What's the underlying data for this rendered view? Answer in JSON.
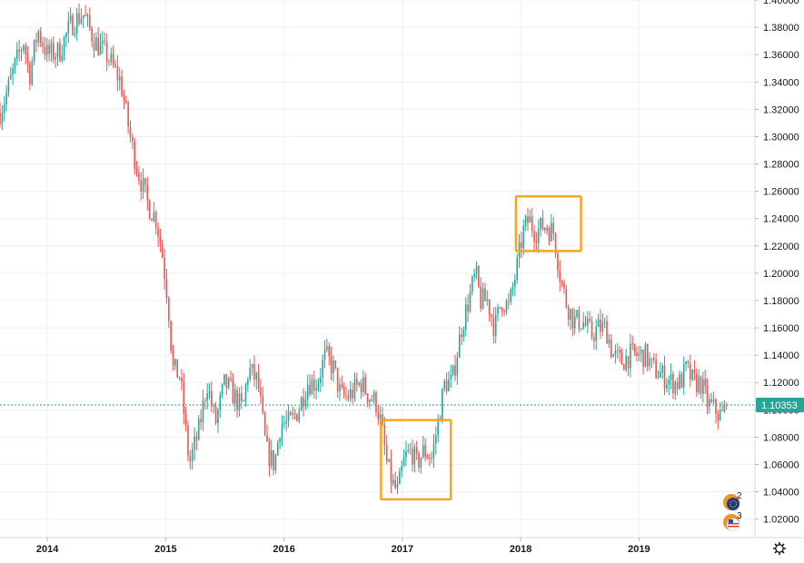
{
  "chart_data": {
    "type": "candlestick",
    "x_tick_labels": [
      "2014",
      "2015",
      "2016",
      "2017",
      "2018",
      "2019"
    ],
    "x_tick_values": [
      2014.0,
      2015.0,
      2016.0,
      2017.0,
      2018.0,
      2019.0
    ],
    "xlim": [
      2013.6,
      2019.98
    ],
    "ylim": [
      1.0065,
      1.4
    ],
    "y_tick_values": [
      1.02,
      1.04,
      1.06,
      1.08,
      1.1,
      1.12,
      1.14,
      1.16,
      1.18,
      1.2,
      1.22,
      1.24,
      1.26,
      1.28,
      1.3,
      1.32,
      1.34,
      1.36,
      1.38,
      1.4
    ],
    "y_tick_labels": [
      "1.02000",
      "1.04000",
      "1.06000",
      "1.08000",
      "1.10000",
      "1.12000",
      "1.14000",
      "1.16000",
      "1.18000",
      "1.20000",
      "1.22000",
      "1.24000",
      "1.26000",
      "1.28000",
      "1.30000",
      "1.32000",
      "1.34000",
      "1.36000",
      "1.38000",
      "1.40000"
    ],
    "price_path": [
      [
        2013.6,
        1.318
      ],
      [
        2013.65,
        1.33
      ],
      [
        2013.72,
        1.35
      ],
      [
        2013.8,
        1.37
      ],
      [
        2013.85,
        1.345
      ],
      [
        2013.92,
        1.378
      ],
      [
        2014.0,
        1.36
      ],
      [
        2014.1,
        1.362
      ],
      [
        2014.2,
        1.382
      ],
      [
        2014.3,
        1.39
      ],
      [
        2014.4,
        1.37
      ],
      [
        2014.5,
        1.36
      ],
      [
        2014.55,
        1.352
      ],
      [
        2014.62,
        1.34
      ],
      [
        2014.7,
        1.3
      ],
      [
        2014.75,
        1.28
      ],
      [
        2014.85,
        1.25
      ],
      [
        2014.92,
        1.24
      ],
      [
        2014.97,
        1.215
      ],
      [
        2015.02,
        1.18
      ],
      [
        2015.06,
        1.13
      ],
      [
        2015.12,
        1.125
      ],
      [
        2015.2,
        1.06
      ],
      [
        2015.28,
        1.085
      ],
      [
        2015.35,
        1.12
      ],
      [
        2015.42,
        1.09
      ],
      [
        2015.5,
        1.12
      ],
      [
        2015.58,
        1.11
      ],
      [
        2015.65,
        1.1
      ],
      [
        2015.7,
        1.13
      ],
      [
        2015.78,
        1.12
      ],
      [
        2015.85,
        1.07
      ],
      [
        2015.92,
        1.06
      ],
      [
        2015.97,
        1.09
      ],
      [
        2016.05,
        1.09
      ],
      [
        2016.12,
        1.1
      ],
      [
        2016.2,
        1.12
      ],
      [
        2016.28,
        1.12
      ],
      [
        2016.35,
        1.14
      ],
      [
        2016.42,
        1.13
      ],
      [
        2016.48,
        1.11
      ],
      [
        2016.55,
        1.11
      ],
      [
        2016.6,
        1.115
      ],
      [
        2016.65,
        1.12
      ],
      [
        2016.72,
        1.11
      ],
      [
        2016.78,
        1.105
      ],
      [
        2016.82,
        1.09
      ],
      [
        2016.87,
        1.06
      ],
      [
        2016.92,
        1.045
      ],
      [
        2016.96,
        1.04
      ],
      [
        2017.02,
        1.065
      ],
      [
        2017.08,
        1.07
      ],
      [
        2017.12,
        1.06
      ],
      [
        2017.18,
        1.07
      ],
      [
        2017.25,
        1.065
      ],
      [
        2017.3,
        1.09
      ],
      [
        2017.36,
        1.12
      ],
      [
        2017.42,
        1.12
      ],
      [
        2017.5,
        1.16
      ],
      [
        2017.56,
        1.18
      ],
      [
        2017.62,
        1.2
      ],
      [
        2017.66,
        1.18
      ],
      [
        2017.72,
        1.18
      ],
      [
        2017.78,
        1.16
      ],
      [
        2017.84,
        1.18
      ],
      [
        2017.9,
        1.175
      ],
      [
        2017.96,
        1.2
      ],
      [
        2018.02,
        1.23
      ],
      [
        2018.07,
        1.24
      ],
      [
        2018.12,
        1.23
      ],
      [
        2018.2,
        1.235
      ],
      [
        2018.28,
        1.23
      ],
      [
        2018.33,
        1.2
      ],
      [
        2018.38,
        1.18
      ],
      [
        2018.45,
        1.165
      ],
      [
        2018.52,
        1.165
      ],
      [
        2018.6,
        1.155
      ],
      [
        2018.66,
        1.16
      ],
      [
        2018.72,
        1.16
      ],
      [
        2018.78,
        1.14
      ],
      [
        2018.85,
        1.135
      ],
      [
        2018.92,
        1.14
      ],
      [
        2018.98,
        1.14
      ],
      [
        2019.05,
        1.14
      ],
      [
        2019.12,
        1.13
      ],
      [
        2019.2,
        1.125
      ],
      [
        2019.28,
        1.12
      ],
      [
        2019.35,
        1.12
      ],
      [
        2019.4,
        1.13
      ],
      [
        2019.46,
        1.12
      ],
      [
        2019.52,
        1.12
      ],
      [
        2019.58,
        1.105
      ],
      [
        2019.64,
        1.1
      ],
      [
        2019.7,
        1.095
      ],
      [
        2019.74,
        1.1035
      ]
    ],
    "current_price": 1.10353,
    "current_price_label": "1.10353",
    "highlight_boxes": [
      {
        "x0": 2016.82,
        "x1": 2017.41,
        "y0": 1.0345,
        "y1": 1.0925
      },
      {
        "x0": 2017.96,
        "x1": 2018.51,
        "y0": 1.2163,
        "y1": 1.2563
      }
    ],
    "grid": true,
    "colors": {
      "up": "#26a69a",
      "down": "#ef5350",
      "highlight": "#f5a623",
      "price_line": "#26a69a",
      "grid": "#eef0f3",
      "axis": "#d6d8de"
    }
  },
  "badges": [
    {
      "icon": "eu-flag-icon",
      "count": "2"
    },
    {
      "icon": "us-flag-icon",
      "count": "3"
    }
  ],
  "settings": {
    "icon": "gear-icon"
  }
}
